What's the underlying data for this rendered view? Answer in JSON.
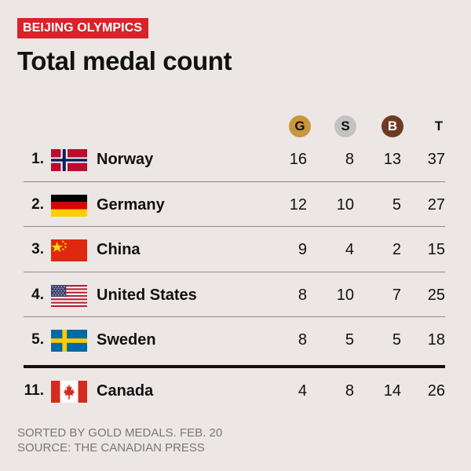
{
  "header": {
    "tag": "BEIJING OLYMPICS",
    "title": "Total medal count"
  },
  "columns": {
    "gold": "G",
    "silver": "S",
    "bronze": "B",
    "total": "T"
  },
  "colors": {
    "tag_bg": "#d8232a",
    "gold": "#c9963e",
    "silver": "#c3c3c3",
    "bronze": "#6f3a23",
    "background": "#ece7e5"
  },
  "chart_data": {
    "type": "table",
    "title": "Total medal count",
    "columns": [
      "G",
      "S",
      "B",
      "T"
    ],
    "rows": [
      {
        "rank": "1.",
        "country": "Norway",
        "flag": "norway-flag",
        "gold": 16,
        "silver": 8,
        "bronze": 13,
        "total": 37
      },
      {
        "rank": "2.",
        "country": "Germany",
        "flag": "germany-flag",
        "gold": 12,
        "silver": 10,
        "bronze": 5,
        "total": 27
      },
      {
        "rank": "3.",
        "country": "China",
        "flag": "china-flag",
        "gold": 9,
        "silver": 4,
        "bronze": 2,
        "total": 15
      },
      {
        "rank": "4.",
        "country": "United States",
        "flag": "usa-flag",
        "gold": 8,
        "silver": 10,
        "bronze": 7,
        "total": 25
      },
      {
        "rank": "5.",
        "country": "Sweden",
        "flag": "sweden-flag",
        "gold": 8,
        "silver": 5,
        "bronze": 5,
        "total": 18
      },
      {
        "rank": "11.",
        "country": "Canada",
        "flag": "canada-flag",
        "gold": 4,
        "silver": 8,
        "bronze": 14,
        "total": 26
      }
    ]
  },
  "footer": {
    "line1": "SORTED BY GOLD MEDALS. FEB. 20",
    "line2": "SOURCE: THE CANADIAN PRESS"
  }
}
